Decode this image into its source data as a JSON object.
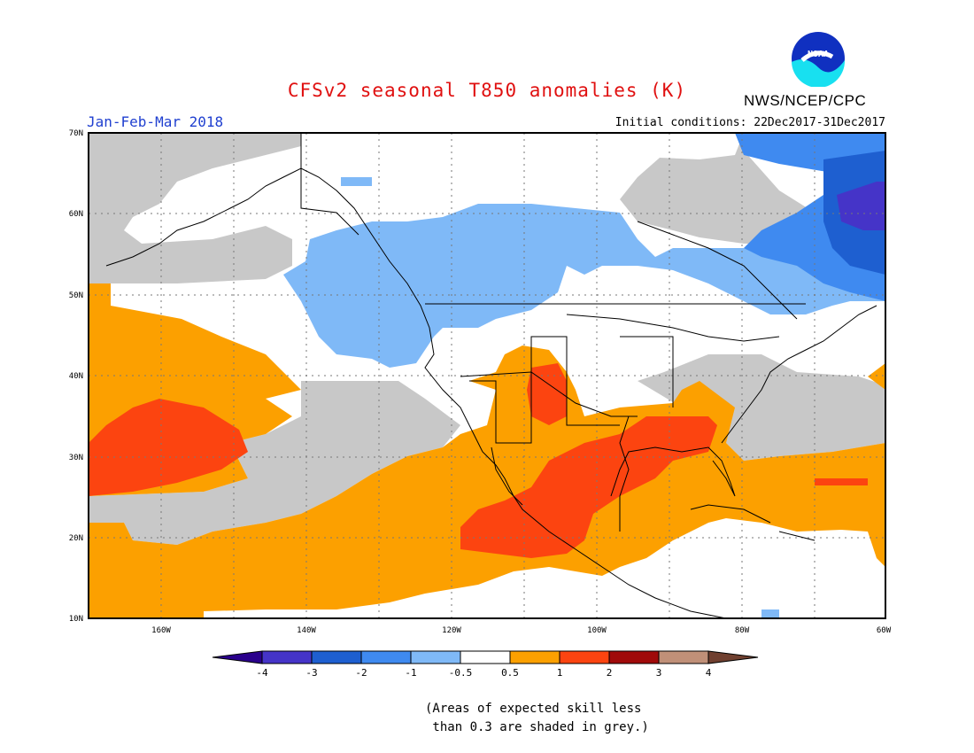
{
  "header": {
    "title": "CFSv2 seasonal T850 anomalies (K)",
    "period": "Jan-Feb-Mar 2018",
    "initial_conditions": "Initial conditions: 22Dec2017-31Dec2017",
    "organization": "NWS/NCEP/CPC",
    "logo_text": "NOAA"
  },
  "map": {
    "lat_labels": [
      "70N",
      "60N",
      "50N",
      "40N",
      "30N",
      "20N",
      "10N"
    ],
    "lon_labels": [
      "160W",
      "140W",
      "120W",
      "100W",
      "80W",
      "60W"
    ],
    "lat_range": [
      10,
      70
    ],
    "lon_range": [
      -170,
      -60
    ],
    "colors": {
      "grey_low_skill": "#c8c8c8",
      "neutral": "#ffffff",
      "cool_light": "#7fb9f7",
      "cool_medium": "#3f8af0",
      "cool_strong": "#1e5fd0",
      "cool_stronger": "#4534c8",
      "warm_light": "#fca000",
      "warm_medium": "#fc4410",
      "warm_strong": "#a00a0a",
      "warm_stronger": "#c09078",
      "warm_extreme": "#704030"
    }
  },
  "colorbar": {
    "labels": [
      "-4",
      "-3",
      "-2",
      "-1",
      "-0.5",
      "0.5",
      "1",
      "2",
      "3",
      "4"
    ],
    "colors": [
      "#2a008c",
      "#4534c8",
      "#1e5fd0",
      "#3f8af0",
      "#7fb9f7",
      "#ffffff",
      "#fca000",
      "#fc4410",
      "#a00a0a",
      "#c09078",
      "#704030"
    ]
  },
  "note": {
    "line1": "(Areas of expected skill less",
    "line2": " than 0.3 are shaded in grey.)"
  }
}
